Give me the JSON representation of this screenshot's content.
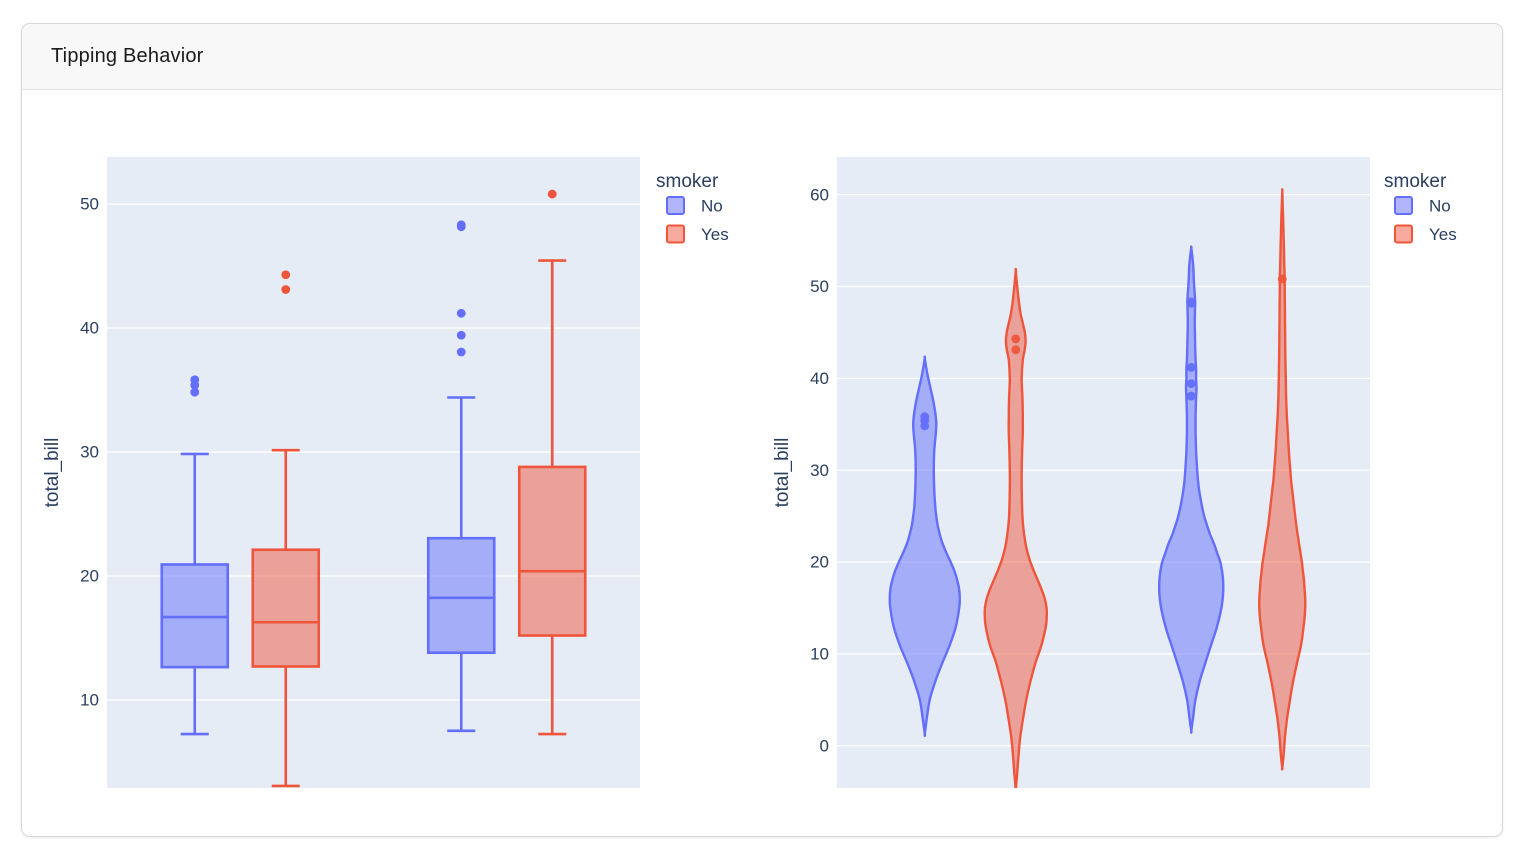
{
  "card": {
    "title": "Tipping Behavior"
  },
  "palette": {
    "no_line": "#636EFA",
    "no_fill": "rgba(99,110,250,0.5)",
    "yes_line": "#EF553B",
    "yes_fill": "rgba(239,85,59,0.5)",
    "plot_bg": "#E5ECF6",
    "grid": "#FFFFFF",
    "text": "#2A3F5F"
  },
  "chart_data": [
    {
      "type": "box",
      "ylabel": "total_bill",
      "yticks": [
        10,
        20,
        30,
        40,
        50
      ],
      "yrange": [
        2.9,
        53.8
      ],
      "x_tick_labels_visible": false,
      "grid": true,
      "legend": {
        "title": "smoker",
        "position": "outside-top-right",
        "entries": [
          {
            "label": "No",
            "color": "#636EFA"
          },
          {
            "label": "Yes",
            "color": "#EF553B"
          }
        ]
      },
      "series": [
        {
          "name": "No",
          "boxes": [
            {
              "low": 7.25,
              "q1": 12.65,
              "median": 16.69,
              "q3": 20.93,
              "high": 29.85,
              "outliers": [
                34.83,
                35.4,
                35.83
              ]
            },
            {
              "low": 7.51,
              "q1": 13.81,
              "median": 18.24,
              "q3": 23.05,
              "high": 34.4,
              "outliers": [
                38.07,
                39.42,
                41.19,
                48.17,
                48.33
              ]
            }
          ]
        },
        {
          "name": "Yes",
          "boxes": [
            {
              "low": 3.07,
              "q1": 12.7,
              "median": 16.27,
              "q3": 22.12,
              "high": 30.15,
              "outliers": [
                43.11,
                44.3
              ]
            },
            {
              "low": 7.25,
              "q1": 15.2,
              "median": 20.39,
              "q3": 28.8,
              "high": 45.45,
              "outliers": [
                50.81
              ]
            }
          ]
        }
      ]
    },
    {
      "type": "violin",
      "ylabel": "total_bill",
      "yticks": [
        0,
        10,
        20,
        30,
        40,
        50,
        60
      ],
      "yrange": [
        -4.6,
        64.1
      ],
      "x_tick_labels_visible": false,
      "grid": true,
      "legend": {
        "title": "smoker",
        "position": "outside-top-right",
        "entries": [
          {
            "label": "No",
            "color": "#636EFA"
          },
          {
            "label": "Yes",
            "color": "#EF553B"
          }
        ]
      },
      "series": [
        {
          "name": "No",
          "violins": [
            {
              "span": [
                1.3,
                42.2
              ],
              "points": [
                34.83,
                35.4,
                35.83
              ],
              "profile": [
                [
                  1.3,
                  0
                ],
                [
                  3,
                  0.06
                ],
                [
                  5,
                  0.14
                ],
                [
                  7,
                  0.3
                ],
                [
                  9,
                  0.5
                ],
                [
                  11,
                  0.72
                ],
                [
                  13,
                  0.89
                ],
                [
                  15,
                  0.985
                ],
                [
                  16,
                  1.0
                ],
                [
                  17,
                  0.985
                ],
                [
                  18,
                  0.93
                ],
                [
                  19,
                  0.85
                ],
                [
                  20,
                  0.74
                ],
                [
                  21,
                  0.62
                ],
                [
                  22,
                  0.51
                ],
                [
                  23,
                  0.43
                ],
                [
                  24,
                  0.37
                ],
                [
                  25,
                  0.33
                ],
                [
                  26,
                  0.3
                ],
                [
                  28,
                  0.27
                ],
                [
                  30,
                  0.26
                ],
                [
                  32,
                  0.27
                ],
                [
                  34,
                  0.315
                ],
                [
                  35,
                  0.33
                ],
                [
                  36,
                  0.31
                ],
                [
                  37,
                  0.27
                ],
                [
                  38,
                  0.22
                ],
                [
                  39,
                  0.16
                ],
                [
                  40,
                  0.1
                ],
                [
                  41,
                  0.05
                ],
                [
                  42.2,
                  0
                ]
              ]
            },
            {
              "span": [
                1.6,
                54.2
              ],
              "points": [
                38.07,
                39.42,
                41.19,
                48.17,
                48.33
              ],
              "profile": [
                [
                  1.6,
                  0
                ],
                [
                  3,
                  0.05
                ],
                [
                  5,
                  0.12
                ],
                [
                  7,
                  0.24
                ],
                [
                  9,
                  0.4
                ],
                [
                  11,
                  0.57
                ],
                [
                  13,
                  0.74
                ],
                [
                  15,
                  0.86
                ],
                [
                  16.5,
                  0.91
                ],
                [
                  18,
                  0.91
                ],
                [
                  19,
                  0.88
                ],
                [
                  20,
                  0.83
                ],
                [
                  21,
                  0.74
                ],
                [
                  22,
                  0.65
                ],
                [
                  23,
                  0.54
                ],
                [
                  24,
                  0.45
                ],
                [
                  25,
                  0.37
                ],
                [
                  26,
                  0.31
                ],
                [
                  27,
                  0.26
                ],
                [
                  28,
                  0.22
                ],
                [
                  29,
                  0.19
                ],
                [
                  30,
                  0.17
                ],
                [
                  32,
                  0.14
                ],
                [
                  34,
                  0.125
                ],
                [
                  36,
                  0.125
                ],
                [
                  38,
                  0.14
                ],
                [
                  39,
                  0.15
                ],
                [
                  40,
                  0.14
                ],
                [
                  41,
                  0.14
                ],
                [
                  42,
                  0.125
                ],
                [
                  44,
                  0.11
                ],
                [
                  46,
                  0.1
                ],
                [
                  48,
                  0.11
                ],
                [
                  48.5,
                  0.11
                ],
                [
                  50,
                  0.085
                ],
                [
                  51,
                  0.07
                ],
                [
                  52,
                  0.06
                ],
                [
                  53,
                  0.04
                ],
                [
                  54.2,
                  0
                ]
              ]
            }
          ]
        },
        {
          "name": "Yes",
          "violins": [
            {
              "span": [
                -4.8,
                51.7
              ],
              "points": [
                43.11,
                44.3
              ],
              "profile": [
                [
                  -4.8,
                  0
                ],
                [
                  -3,
                  0.04
                ],
                [
                  -1,
                  0.08
                ],
                [
                  1,
                  0.13
                ],
                [
                  3,
                  0.21
                ],
                [
                  5,
                  0.3
                ],
                [
                  7,
                  0.42
                ],
                [
                  9,
                  0.56
                ],
                [
                  11,
                  0.74
                ],
                [
                  13,
                  0.86
                ],
                [
                  14,
                  0.885
                ],
                [
                  15,
                  0.88
                ],
                [
                  16,
                  0.83
                ],
                [
                  17,
                  0.74
                ],
                [
                  18,
                  0.63
                ],
                [
                  19,
                  0.52
                ],
                [
                  20,
                  0.42
                ],
                [
                  21,
                  0.34
                ],
                [
                  22,
                  0.28
                ],
                [
                  23,
                  0.24
                ],
                [
                  24,
                  0.21
                ],
                [
                  25,
                  0.19
                ],
                [
                  26,
                  0.18
                ],
                [
                  28,
                  0.17
                ],
                [
                  30,
                  0.17
                ],
                [
                  32,
                  0.18
                ],
                [
                  34,
                  0.2
                ],
                [
                  36,
                  0.2
                ],
                [
                  38,
                  0.19
                ],
                [
                  40,
                  0.17
                ],
                [
                  42,
                  0.2
                ],
                [
                  43,
                  0.25
                ],
                [
                  44,
                  0.28
                ],
                [
                  45,
                  0.26
                ],
                [
                  46,
                  0.2
                ],
                [
                  47,
                  0.14
                ],
                [
                  48,
                  0.1
                ],
                [
                  49,
                  0.07
                ],
                [
                  50,
                  0.04
                ],
                [
                  51.7,
                  0
                ]
              ]
            },
            {
              "span": [
                -2.4,
                60.3
              ],
              "points": [
                50.81
              ],
              "profile": [
                [
                  -2.4,
                  0
                ],
                [
                  -1,
                  0.04
                ],
                [
                  1,
                  0.08
                ],
                [
                  3,
                  0.14
                ],
                [
                  5,
                  0.22
                ],
                [
                  7,
                  0.31
                ],
                [
                  9,
                  0.42
                ],
                [
                  11,
                  0.54
                ],
                [
                  13,
                  0.61
                ],
                [
                  14,
                  0.64
                ],
                [
                  15,
                  0.655
                ],
                [
                  16,
                  0.655
                ],
                [
                  17,
                  0.64
                ],
                [
                  18,
                  0.62
                ],
                [
                  19,
                  0.59
                ],
                [
                  20,
                  0.56
                ],
                [
                  21,
                  0.52
                ],
                [
                  22,
                  0.48
                ],
                [
                  23,
                  0.44
                ],
                [
                  24,
                  0.4
                ],
                [
                  25,
                  0.37
                ],
                [
                  26,
                  0.34
                ],
                [
                  27,
                  0.31
                ],
                [
                  28,
                  0.28
                ],
                [
                  29,
                  0.25
                ],
                [
                  30,
                  0.23
                ],
                [
                  32,
                  0.19
                ],
                [
                  34,
                  0.16
                ],
                [
                  36,
                  0.13
                ],
                [
                  38,
                  0.11
                ],
                [
                  40,
                  0.1
                ],
                [
                  42,
                  0.09
                ],
                [
                  44,
                  0.085
                ],
                [
                  46,
                  0.08
                ],
                [
                  48,
                  0.075
                ],
                [
                  50,
                  0.07
                ],
                [
                  51,
                  0.07
                ],
                [
                  52,
                  0.06
                ],
                [
                  54,
                  0.05
                ],
                [
                  56,
                  0.035
                ],
                [
                  58,
                  0.02
                ],
                [
                  60.3,
                  0
                ]
              ]
            }
          ]
        }
      ]
    }
  ]
}
